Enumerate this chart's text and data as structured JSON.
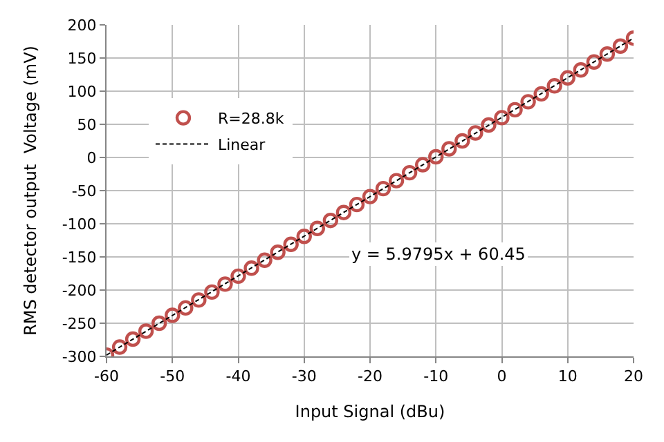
{
  "chart_data": {
    "type": "scatter",
    "xlabel": "Input Signal (dBu)",
    "ylabel": "RMS detector output  Voltage (mV)",
    "x": [
      -60,
      -58,
      -56,
      -54,
      -52,
      -50,
      -48,
      -46,
      -44,
      -42,
      -40,
      -38,
      -36,
      -34,
      -32,
      -30,
      -28,
      -26,
      -24,
      -22,
      -20,
      -18,
      -16,
      -14,
      -12,
      -10,
      -8,
      -6,
      -4,
      -2,
      0,
      2,
      4,
      6,
      8,
      10,
      12,
      14,
      16,
      18,
      20
    ],
    "series": [
      {
        "name": "R=28.8k",
        "marker": "circle",
        "color": "#c0504d",
        "values": [
          -298,
          -286,
          -274,
          -262,
          -250,
          -238,
          -227,
          -215,
          -203,
          -191,
          -179,
          -167,
          -155,
          -143,
          -131,
          -119,
          -107,
          -95,
          -83,
          -71,
          -59,
          -47,
          -35,
          -23,
          -11,
          1,
          13,
          25,
          37,
          49,
          60,
          72,
          84,
          96,
          108,
          120,
          132,
          144,
          156,
          168,
          180
        ]
      },
      {
        "name": "Linear",
        "type": "line",
        "marker": "none",
        "line_style": "dashed",
        "color": "#000000",
        "x": [
          -60,
          20
        ],
        "values": [
          -298,
          180
        ]
      }
    ],
    "annotations": [
      "y = 5.9795x + 60.45"
    ],
    "xlim": [
      -60,
      20
    ],
    "xticks": [
      -60,
      -50,
      -40,
      -30,
      -20,
      -10,
      0,
      10,
      20
    ],
    "ylim": [
      -300,
      200
    ],
    "yticks": [
      -300,
      -250,
      -200,
      -150,
      -100,
      -50,
      0,
      50,
      100,
      150,
      200
    ],
    "grid": true,
    "legend": "top left"
  }
}
